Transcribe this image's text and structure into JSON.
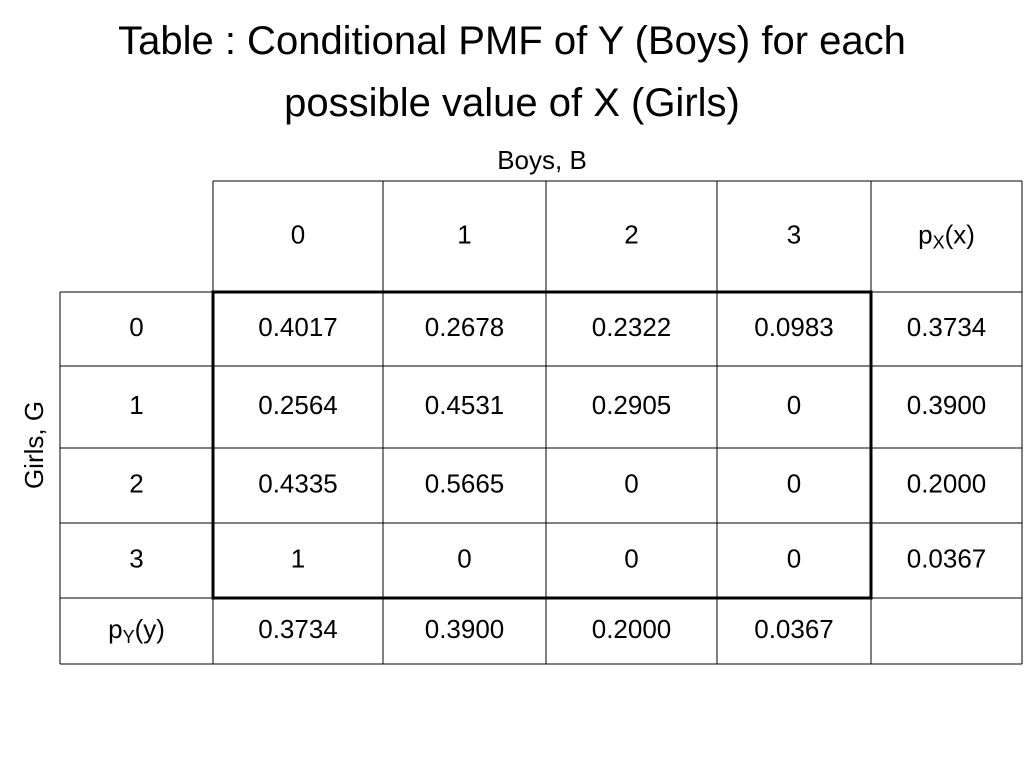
{
  "title": "Table : Conditional PMF of Y (Boys) for each possible value of X (Girls)",
  "table": {
    "column_header": "Boys, B",
    "row_header": "Girls, G",
    "columns": [
      "0",
      "1",
      "2",
      "3",
      {
        "base": "p",
        "sub": "X",
        "rest": "(x)"
      }
    ],
    "rows": [
      {
        "label": "0",
        "cells": [
          "0.4017",
          "0.2678",
          "0.2322",
          "0.0983",
          "0.3734"
        ]
      },
      {
        "label": "1",
        "cells": [
          "0.2564",
          "0.4531",
          "0.2905",
          "0",
          "0.3900"
        ]
      },
      {
        "label": "2",
        "cells": [
          "0.4335",
          "0.5665",
          "0",
          "0",
          "0.2000"
        ]
      },
      {
        "label": "3",
        "cells": [
          "1",
          "0",
          "0",
          "0",
          "0.0367"
        ]
      },
      {
        "label": {
          "base": "p",
          "sub": "Y",
          "rest": "(y)"
        },
        "cells": [
          "0.3734",
          "0.3900",
          "0.2000",
          "0.0367"
        ]
      }
    ]
  }
}
